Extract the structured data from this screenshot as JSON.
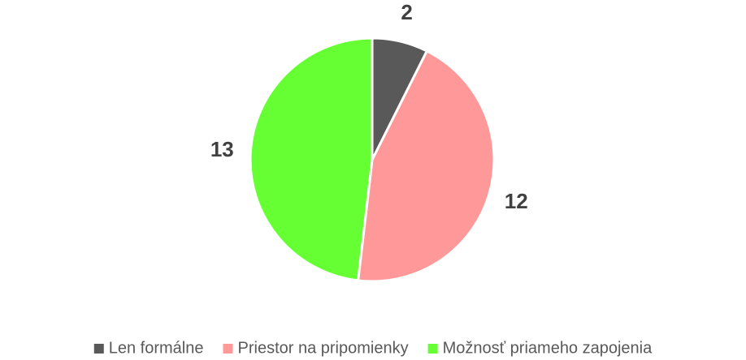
{
  "chart_data": {
    "type": "pie",
    "categories": [
      "Len formálne",
      "Priestor na pripomienky",
      "Možnosť priameho zapojenia"
    ],
    "values": [
      2,
      12,
      13
    ],
    "colors": [
      "#595959",
      "#ff9999",
      "#66ff33"
    ],
    "legend": "bottom"
  }
}
